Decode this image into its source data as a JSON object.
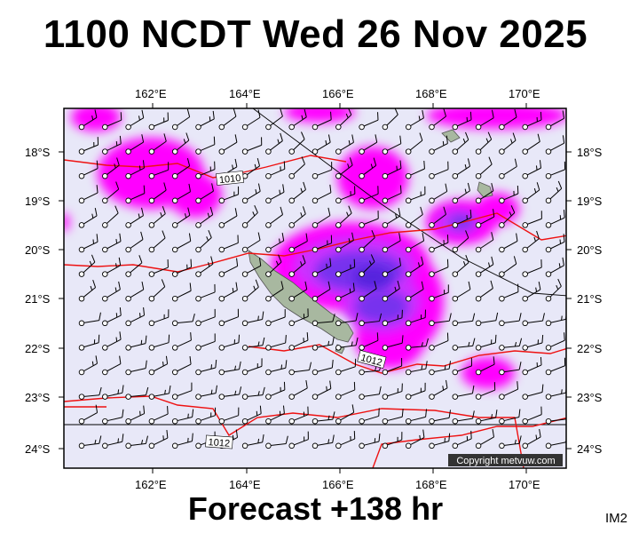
{
  "title": "1100 NCDT Wed 26 Nov 2025",
  "footer": "Forecast +138 hr",
  "tag": "IM2",
  "copyright": "Copyright metvuw.com",
  "lon_labels": [
    "162°E",
    "164°E",
    "166°E",
    "168°E",
    "170°E"
  ],
  "lat_labels": [
    "18°S",
    "19°S",
    "20°S",
    "21°S",
    "22°S",
    "23°S",
    "24°S"
  ],
  "isobar_labels": [
    "1010",
    "1012",
    "1012"
  ],
  "colors": {
    "ocean": "#e8e8f8",
    "rain_light": "#ff00ff",
    "rain_medium": "#cc33ff",
    "rain_heavy": "#7733ee",
    "rain_core": "#5522dd",
    "isobar": "#ee1111",
    "land": "#a8b8a0",
    "wind": "#000000"
  },
  "map_extent": {
    "lon": [
      160,
      171
    ],
    "lat": [
      -24.4,
      -17.4
    ]
  }
}
